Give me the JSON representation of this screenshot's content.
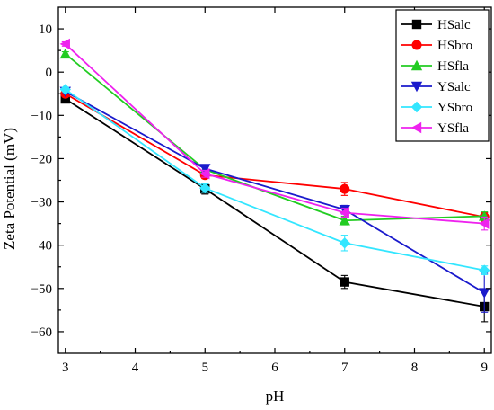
{
  "chart_data": {
    "type": "line",
    "title": "",
    "xlabel": "pH",
    "ylabel": "Zeta Potential (mV)",
    "x": [
      3,
      5,
      7,
      9
    ],
    "xlim": [
      2.9,
      9.1
    ],
    "ylim": [
      -65,
      15
    ],
    "xticks": [
      "3",
      "4",
      "5",
      "6",
      "7",
      "8",
      "9"
    ],
    "yticks": [
      "10",
      "0",
      "−10",
      "−20",
      "−30",
      "−40",
      "−50",
      "−60"
    ],
    "legend_position": "top-right",
    "grid": false,
    "series": [
      {
        "name": "HSalc",
        "color": "#000000",
        "marker": "square",
        "values": [
          -6.2,
          -27.0,
          -48.5,
          -54.2
        ],
        "errors": [
          0.6,
          1.2,
          1.5,
          3.5
        ]
      },
      {
        "name": "HSbro",
        "color": "#ff0000",
        "marker": "circle",
        "values": [
          -5.0,
          -23.8,
          -27.0,
          -33.5
        ],
        "errors": [
          0.5,
          0.8,
          1.5,
          1.0
        ]
      },
      {
        "name": "HSfla",
        "color": "#22cc22",
        "marker": "triangle-up",
        "values": [
          4.2,
          -22.5,
          -34.3,
          -33.3
        ],
        "errors": [
          0.5,
          0.8,
          1.0,
          1.0
        ]
      },
      {
        "name": "YSalc",
        "color": "#1a1acc",
        "marker": "triangle-down",
        "values": [
          -4.5,
          -22.3,
          -31.8,
          -51.0
        ],
        "errors": [
          0.5,
          0.8,
          1.0,
          4.5
        ]
      },
      {
        "name": "YSbro",
        "color": "#33e6ff",
        "marker": "diamond",
        "values": [
          -4.0,
          -26.8,
          -39.5,
          -45.8
        ],
        "errors": [
          0.5,
          1.0,
          1.8,
          1.0
        ]
      },
      {
        "name": "YSfla",
        "color": "#ee22ee",
        "marker": "triangle-left",
        "values": [
          6.5,
          -23.5,
          -32.5,
          -35.0
        ],
        "errors": [
          0.5,
          0.8,
          1.0,
          1.5
        ]
      }
    ]
  }
}
